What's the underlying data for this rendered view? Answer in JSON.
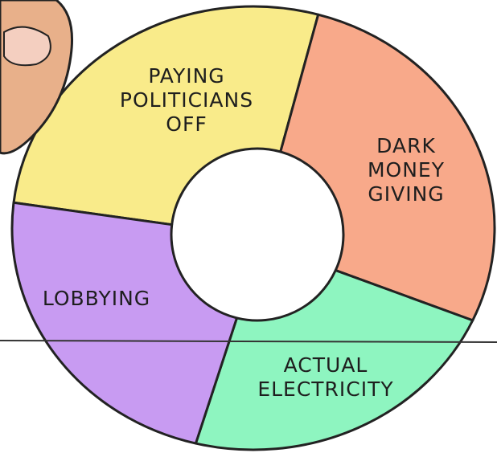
{
  "chart_data": {
    "type": "donut",
    "categories": [
      "PAYING POLITICIANS OFF",
      "DARK MONEY GIVING",
      "ACTUAL ELECTRICITY",
      "LOBBYING"
    ],
    "values": [
      27.5,
      27.5,
      22,
      23
    ],
    "colors": [
      "#f9eb8a",
      "#f8a98a",
      "#8ef5c0",
      "#c89bf2"
    ]
  }
}
